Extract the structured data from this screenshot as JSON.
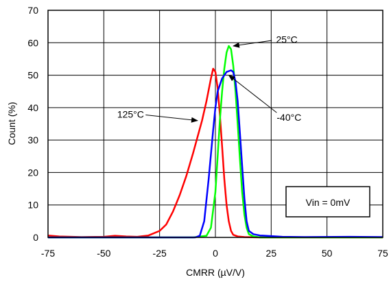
{
  "chart_data": {
    "type": "line",
    "title": "",
    "xlabel": "CMRR (µV/V)",
    "ylabel": "Count (%)",
    "xlim": [
      -75,
      75
    ],
    "ylim": [
      0,
      70
    ],
    "x_ticks": [
      -75,
      -50,
      -25,
      0,
      25,
      50,
      75
    ],
    "y_ticks": [
      0,
      10,
      20,
      30,
      40,
      50,
      60,
      70
    ],
    "x_tick_labels": [
      "-75",
      "-50",
      "-25",
      "0",
      "25",
      "50",
      "75"
    ],
    "y_tick_labels": [
      "0",
      "10",
      "20",
      "30",
      "40",
      "50",
      "60",
      "70"
    ],
    "grid": true,
    "series": [
      {
        "name": "125°C",
        "color": "#ff0000",
        "points": [
          [
            -75,
            0.6
          ],
          [
            -70,
            0.3
          ],
          [
            -60,
            0.1
          ],
          [
            -50,
            0.2
          ],
          [
            -45,
            0.5
          ],
          [
            -40,
            0.3
          ],
          [
            -35,
            0.2
          ],
          [
            -30,
            0.6
          ],
          [
            -25,
            2.0
          ],
          [
            -22,
            4.0
          ],
          [
            -19,
            8.0
          ],
          [
            -16,
            13.0
          ],
          [
            -13,
            19.0
          ],
          [
            -10,
            26.0
          ],
          [
            -8,
            31.0
          ],
          [
            -6,
            36.0
          ],
          [
            -4,
            42.0
          ],
          [
            -2,
            49.0
          ],
          [
            -1,
            52.0
          ],
          [
            0,
            51.0
          ],
          [
            1,
            46.0
          ],
          [
            2,
            38.0
          ],
          [
            3,
            28.0
          ],
          [
            4,
            18.0
          ],
          [
            5,
            10.0
          ],
          [
            6,
            5.0
          ],
          [
            7,
            2.0
          ],
          [
            8,
            0.8
          ],
          [
            10,
            0.3
          ],
          [
            13,
            0.1
          ],
          [
            20,
            0.0
          ],
          [
            75,
            0.0
          ]
        ]
      },
      {
        "name": "25°C",
        "color": "#00ff00",
        "points": [
          [
            -75,
            0.0
          ],
          [
            -10,
            0.0
          ],
          [
            -4,
            0.5
          ],
          [
            -2,
            3.0
          ],
          [
            0,
            14.0
          ],
          [
            1,
            25.0
          ],
          [
            2,
            36.0
          ],
          [
            3,
            45.0
          ],
          [
            4,
            52.0
          ],
          [
            5,
            57.0
          ],
          [
            6,
            59.0
          ],
          [
            7,
            58.0
          ],
          [
            8,
            53.0
          ],
          [
            9,
            45.0
          ],
          [
            10,
            35.0
          ],
          [
            11,
            24.0
          ],
          [
            12,
            14.0
          ],
          [
            13,
            7.0
          ],
          [
            14,
            3.0
          ],
          [
            15,
            1.0
          ],
          [
            17,
            0.3
          ],
          [
            20,
            0.0
          ],
          [
            75,
            0.0
          ]
        ]
      },
      {
        "name": "-40°C",
        "color": "#0000ff",
        "points": [
          [
            -75,
            0.0
          ],
          [
            -9,
            0.0
          ],
          [
            -7,
            0.5
          ],
          [
            -5,
            5.0
          ],
          [
            -3,
            18.0
          ],
          [
            -1,
            33.0
          ],
          [
            0,
            40.0
          ],
          [
            1,
            45.0
          ],
          [
            3,
            49.0
          ],
          [
            5,
            51.0
          ],
          [
            7,
            51.5
          ],
          [
            8,
            51.0
          ],
          [
            9,
            48.0
          ],
          [
            10,
            42.0
          ],
          [
            11,
            32.0
          ],
          [
            12,
            22.0
          ],
          [
            13,
            12.0
          ],
          [
            14,
            5.0
          ],
          [
            15,
            2.0
          ],
          [
            17,
            1.0
          ],
          [
            20,
            0.6
          ],
          [
            25,
            0.4
          ],
          [
            30,
            0.2
          ],
          [
            40,
            0.1
          ],
          [
            60,
            0.2
          ],
          [
            75,
            0.1
          ]
        ]
      }
    ],
    "annotations": [
      {
        "text": "25°C",
        "arrow_to": [
          8,
          59
        ],
        "text_at": [
          32,
          61
        ]
      },
      {
        "text": "-40°C",
        "arrow_to": [
          6,
          50
        ],
        "text_at": [
          33,
          37
        ]
      },
      {
        "text": "125°C",
        "arrow_to": [
          -8,
          36
        ],
        "text_at": [
          -38,
          38
        ]
      }
    ],
    "legend_box": "Vin = 0mV"
  }
}
